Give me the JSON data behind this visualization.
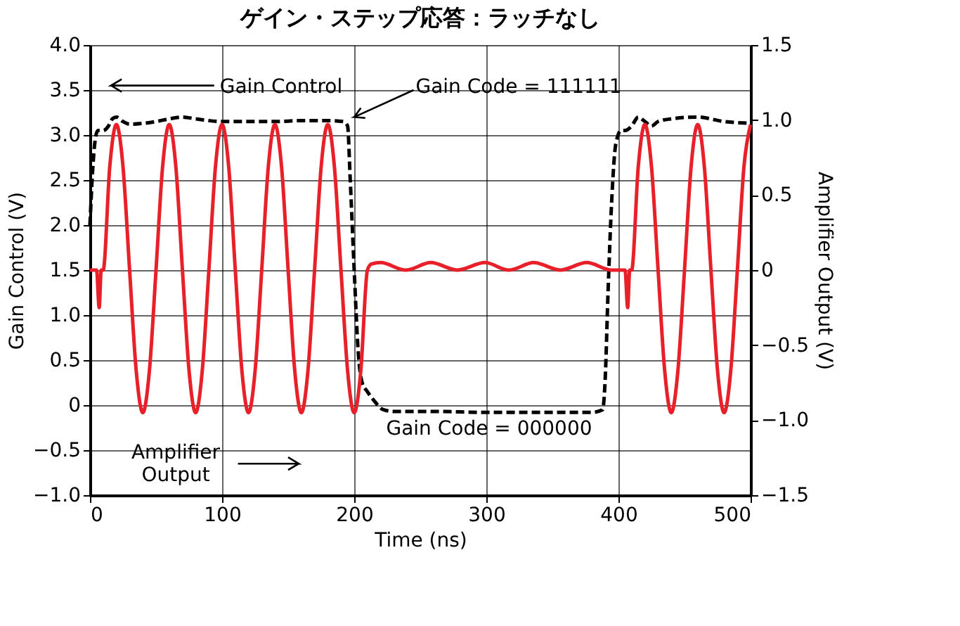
{
  "chart_data": {
    "type": "line",
    "title": "ゲイン・ステップ応答：ラッチなし",
    "xlabel": "Time (ns)",
    "ylabel": "Gain Control (V)",
    "y2label": "Amplifier Output (V)",
    "xlim": [
      0,
      500
    ],
    "xticks": [
      0,
      100,
      200,
      300,
      400,
      500
    ],
    "ylim": [
      -1.0,
      4.0
    ],
    "yticks": [
      {
        "value": -1,
        "label": "−1.0"
      },
      {
        "value": -0.5,
        "label": "−0.5"
      },
      {
        "value": 0,
        "label": "0"
      },
      {
        "value": 0.5,
        "label": "0.5"
      },
      {
        "value": 1,
        "label": "1.0"
      },
      {
        "value": 1.5,
        "label": "1.5"
      },
      {
        "value": 2,
        "label": "2.0"
      },
      {
        "value": 2.5,
        "label": "2.5"
      },
      {
        "value": 3,
        "label": "3.0"
      },
      {
        "value": 3.5,
        "label": "3.5"
      },
      {
        "value": 4,
        "label": "4.0"
      }
    ],
    "y2lim": [
      -1.5,
      1.5
    ],
    "y2ticks": [
      {
        "value": -1.5,
        "label": "−1.5"
      },
      {
        "value": -1,
        "label": "−1.0"
      },
      {
        "value": -0.5,
        "label": "−0.5"
      },
      {
        "value": 0,
        "label": "0"
      },
      {
        "value": 0.5,
        "label": "0.5"
      },
      {
        "value": 1,
        "label": "1.0"
      },
      {
        "value": 1.5,
        "label": "1.5"
      }
    ],
    "grid": true,
    "series": [
      {
        "color": "#000000",
        "line_style": "dashed",
        "x": [
          0,
          2,
          4,
          6,
          10,
          14,
          17,
          20,
          25,
          30,
          40,
          50,
          60,
          70,
          80,
          100,
          120,
          140,
          160,
          180,
          192,
          195,
          197,
          200,
          203,
          206,
          210,
          215,
          222,
          230,
          260,
          300,
          340,
          380,
          388,
          390,
          392,
          395,
          398,
          402,
          405,
          410,
          415,
          420,
          425,
          430,
          440,
          460,
          480,
          500
        ],
        "values": [
          2.0,
          2.6,
          2.95,
          3.05,
          3.05,
          3.1,
          3.18,
          3.2,
          3.15,
          3.12,
          3.13,
          3.15,
          3.18,
          3.2,
          3.18,
          3.15,
          3.15,
          3.15,
          3.16,
          3.16,
          3.15,
          3.1,
          2.5,
          1.5,
          0.6,
          0.25,
          0.15,
          0.05,
          -0.05,
          -0.07,
          -0.07,
          -0.08,
          -0.08,
          -0.08,
          -0.05,
          0.3,
          1.2,
          2.3,
          2.9,
          3.05,
          3.05,
          3.1,
          3.2,
          3.15,
          3.1,
          3.15,
          3.18,
          3.2,
          3.15,
          3.13
        ]
      },
      {
        "color": "#e8202a",
        "line_style": "solid",
        "axis": "y2",
        "x": [
          0,
          5,
          7,
          8.5,
          10,
          15,
          20,
          25,
          30,
          35,
          40,
          45,
          50,
          55,
          60,
          65,
          70,
          75,
          80,
          85,
          90,
          95,
          100,
          105,
          110,
          115,
          120,
          125,
          130,
          135,
          140,
          145,
          150,
          155,
          160,
          165,
          170,
          175,
          180,
          185,
          190,
          195,
          200,
          205,
          210,
          213,
          220,
          239,
          258,
          278,
          299,
          317,
          336,
          356,
          376,
          395,
          405,
          407,
          408.5,
          410,
          415,
          420,
          425,
          430,
          435,
          440,
          445,
          450,
          455,
          460,
          465,
          470,
          475,
          480,
          485,
          490,
          495,
          500
        ],
        "values": [
          0,
          0,
          -0.25,
          0,
          0,
          0.69,
          0.97,
          0.69,
          0,
          -0.67,
          -0.95,
          -0.67,
          0,
          0.69,
          0.97,
          0.69,
          0,
          -0.67,
          -0.95,
          -0.67,
          0,
          0.69,
          0.97,
          0.69,
          0,
          -0.67,
          -0.95,
          -0.67,
          0,
          0.69,
          0.97,
          0.69,
          0,
          -0.67,
          -0.95,
          -0.67,
          0,
          0.69,
          0.97,
          0.69,
          0,
          -0.67,
          -0.95,
          -0.67,
          0,
          0.04,
          0.05,
          0,
          0.05,
          0,
          0.05,
          0,
          0.05,
          0,
          0.05,
          0,
          0,
          -0.25,
          0,
          0,
          0.69,
          0.97,
          0.69,
          0,
          -0.67,
          -0.95,
          -0.67,
          0,
          0.69,
          0.97,
          0.69,
          0,
          -0.67,
          -0.95,
          -0.67,
          0,
          0.69,
          0.97
        ]
      }
    ],
    "annotations": [
      "Gain Control",
      "Gain Code = 111111",
      "Amplifier\nOutput",
      "Gain Code = 000000"
    ]
  }
}
